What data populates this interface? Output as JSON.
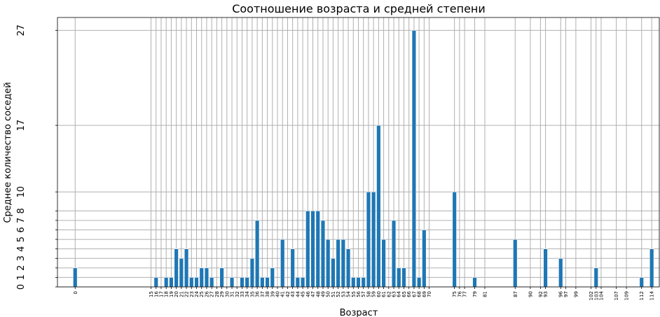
{
  "chart_data": {
    "type": "bar",
    "title": "Соотношение возраста и средней степени",
    "xlabel": "Возраст",
    "ylabel": "Среднее количество соседей",
    "bar_color": "#1f77b4",
    "grid_color": "#b0b0b0",
    "x": [
      0,
      15,
      16,
      17,
      18,
      19,
      20,
      21,
      22,
      23,
      24,
      25,
      26,
      27,
      28,
      29,
      30,
      31,
      32,
      33,
      34,
      35,
      36,
      37,
      38,
      39,
      40,
      41,
      42,
      43,
      44,
      45,
      46,
      47,
      48,
      49,
      50,
      51,
      52,
      53,
      54,
      55,
      56,
      57,
      58,
      59,
      60,
      61,
      62,
      63,
      64,
      65,
      66,
      67,
      68,
      69,
      70,
      75,
      76,
      77,
      79,
      81,
      87,
      90,
      92,
      93,
      96,
      97,
      99,
      102,
      103,
      104,
      107,
      109,
      112,
      114
    ],
    "values": [
      2,
      0,
      1,
      0,
      1,
      1,
      4,
      3,
      4,
      1,
      1,
      2,
      2,
      1,
      0,
      2,
      0,
      1,
      0,
      1,
      1,
      3,
      7,
      1,
      1,
      2,
      0,
      5,
      0,
      4,
      1,
      1,
      8,
      8,
      8,
      7,
      5,
      3,
      5,
      5,
      4,
      1,
      1,
      1,
      10,
      10,
      17,
      5,
      0,
      7,
      2,
      2,
      0,
      27,
      1,
      6,
      0,
      10,
      0,
      0,
      1,
      0,
      5,
      0,
      0,
      4,
      3,
      0,
      0,
      0,
      2,
      0,
      0,
      0,
      1,
      4
    ],
    "yticks": [
      0,
      1,
      2,
      3,
      4,
      5,
      6,
      7,
      8,
      10,
      17,
      27
    ],
    "ylim": [
      0,
      28.35
    ],
    "xlim": [
      -3.5,
      115.5
    ],
    "grid": true
  }
}
